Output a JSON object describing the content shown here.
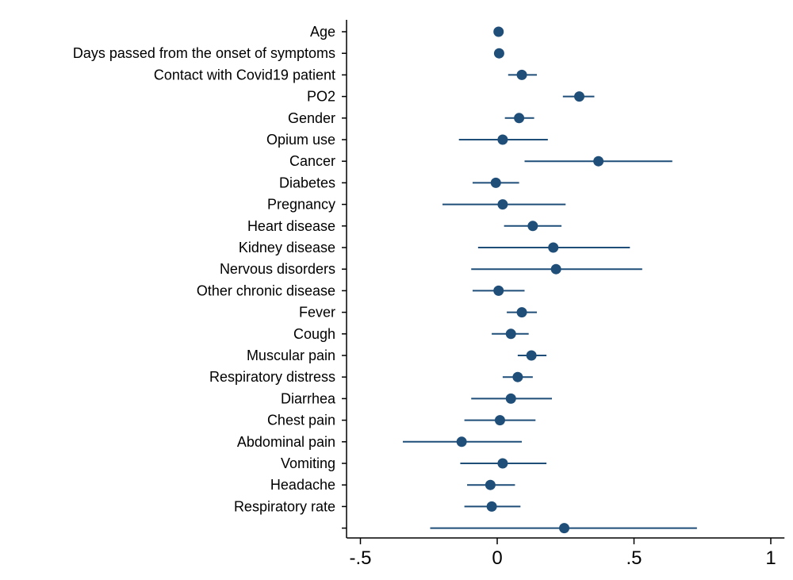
{
  "chart_data": {
    "type": "scatter",
    "title": "",
    "xlabel": "",
    "ylabel": "",
    "xlim": [
      -0.55,
      1.05
    ],
    "xticks": [
      -0.5,
      0,
      0.5,
      1
    ],
    "xtick_labels": [
      "-.5",
      "0",
      ".5",
      "1"
    ],
    "grid": false,
    "colors": {
      "marker": "#1f4e79",
      "ci": "#1f4e79",
      "axis": "#000000"
    },
    "points": [
      {
        "label": "Age",
        "estimate": 0.005,
        "ci_low": null,
        "ci_high": null
      },
      {
        "label": "Days passed from the onset of symptoms",
        "estimate": 0.007,
        "ci_low": null,
        "ci_high": null
      },
      {
        "label": "Contact with Covid19 patient",
        "estimate": 0.09,
        "ci_low": 0.04,
        "ci_high": 0.145
      },
      {
        "label": "PO2",
        "estimate": 0.3,
        "ci_low": 0.24,
        "ci_high": 0.355
      },
      {
        "label": "Gender",
        "estimate": 0.08,
        "ci_low": 0.028,
        "ci_high": 0.135
      },
      {
        "label": "Opium use",
        "estimate": 0.02,
        "ci_low": -0.14,
        "ci_high": 0.185
      },
      {
        "label": "Cancer",
        "estimate": 0.37,
        "ci_low": 0.1,
        "ci_high": 0.64
      },
      {
        "label": "Diabetes",
        "estimate": -0.005,
        "ci_low": -0.09,
        "ci_high": 0.08
      },
      {
        "label": "Pregnancy",
        "estimate": 0.02,
        "ci_low": -0.2,
        "ci_high": 0.25
      },
      {
        "label": "Heart disease",
        "estimate": 0.13,
        "ci_low": 0.025,
        "ci_high": 0.235
      },
      {
        "label": "Kidney disease",
        "estimate": 0.205,
        "ci_low": -0.07,
        "ci_high": 0.485
      },
      {
        "label": "Nervous disorders",
        "estimate": 0.215,
        "ci_low": -0.095,
        "ci_high": 0.53
      },
      {
        "label": "Other chronic disease",
        "estimate": 0.005,
        "ci_low": -0.09,
        "ci_high": 0.1
      },
      {
        "label": "Fever",
        "estimate": 0.09,
        "ci_low": 0.035,
        "ci_high": 0.145
      },
      {
        "label": "Cough",
        "estimate": 0.05,
        "ci_low": -0.02,
        "ci_high": 0.115
      },
      {
        "label": "Muscular pain",
        "estimate": 0.125,
        "ci_low": 0.075,
        "ci_high": 0.18
      },
      {
        "label": "Respiratory distress",
        "estimate": 0.075,
        "ci_low": 0.02,
        "ci_high": 0.13
      },
      {
        "label": "Diarrhea",
        "estimate": 0.05,
        "ci_low": -0.095,
        "ci_high": 0.2
      },
      {
        "label": "Chest pain",
        "estimate": 0.01,
        "ci_low": -0.12,
        "ci_high": 0.14
      },
      {
        "label": "Abdominal pain",
        "estimate": -0.13,
        "ci_low": -0.345,
        "ci_high": 0.09
      },
      {
        "label": "Vomiting",
        "estimate": 0.02,
        "ci_low": -0.135,
        "ci_high": 0.18
      },
      {
        "label": "Headache",
        "estimate": -0.025,
        "ci_low": -0.11,
        "ci_high": 0.065
      },
      {
        "label": "Respiratory rate",
        "estimate": -0.02,
        "ci_low": -0.12,
        "ci_high": 0.085
      },
      {
        "label": "",
        "estimate": 0.245,
        "ci_low": -0.245,
        "ci_high": 0.73
      }
    ]
  }
}
